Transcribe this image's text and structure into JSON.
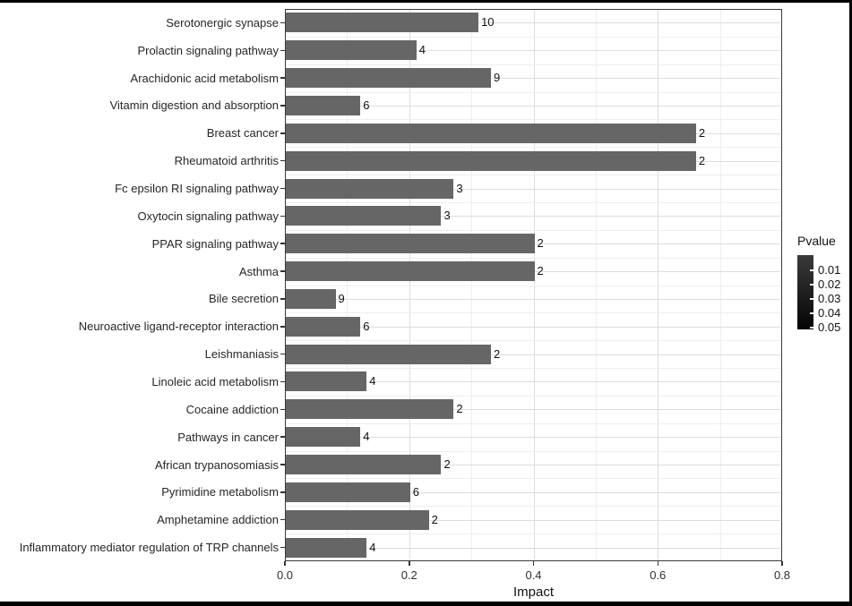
{
  "chart_data": {
    "type": "bar",
    "orientation": "horizontal",
    "title": "",
    "xlabel": "Impact",
    "ylabel": "",
    "xlim": [
      0,
      0.8
    ],
    "x_ticks": [
      0.0,
      0.2,
      0.4,
      0.6,
      0.8
    ],
    "x_tick_labels": [
      "0.0",
      "0.2",
      "0.4",
      "0.6",
      "0.8"
    ],
    "grid": "on",
    "legend_position": "right",
    "categories": [
      "Serotonergic synapse",
      "Prolactin signaling pathway",
      "Arachidonic acid metabolism",
      "Vitamin digestion and absorption",
      "Breast cancer",
      "Rheumatoid arthritis",
      "Fc epsilon RI signaling pathway",
      "Oxytocin signaling pathway",
      "PPAR signaling pathway",
      "Asthma",
      "Bile secretion",
      "Neuroactive ligand-receptor interaction",
      "Leishmaniasis",
      "Linoleic acid metabolism",
      "Cocaine addiction",
      "Pathways in cancer",
      "African trypanosomiasis",
      "Pyrimidine metabolism",
      "Amphetamine addiction",
      "Inflammatory mediator regulation of TRP channels"
    ],
    "values": [
      0.31,
      0.21,
      0.33,
      0.12,
      0.66,
      0.66,
      0.27,
      0.25,
      0.4,
      0.4,
      0.08,
      0.12,
      0.33,
      0.13,
      0.27,
      0.12,
      0.25,
      0.2,
      0.23,
      0.13
    ],
    "bar_labels": [
      "10",
      "4",
      "9",
      "6",
      "2",
      "2",
      "3",
      "3",
      "2",
      "2",
      "9",
      "6",
      "2",
      "4",
      "2",
      "4",
      "2",
      "6",
      "2",
      "4"
    ],
    "bar_color": "#666666",
    "colors": {
      "panel_border": "#3a3a3a",
      "grid_major": "#dddddd",
      "grid_minor": "#eeeeee",
      "axis_text": "#2e2e2e"
    },
    "legend": {
      "title": "Pvalue",
      "tick_labels": [
        "0.01",
        "0.02",
        "0.03",
        "0.04",
        "0.05"
      ],
      "gradient_top": "#3a3a3a",
      "gradient_bottom": "#050505"
    }
  }
}
